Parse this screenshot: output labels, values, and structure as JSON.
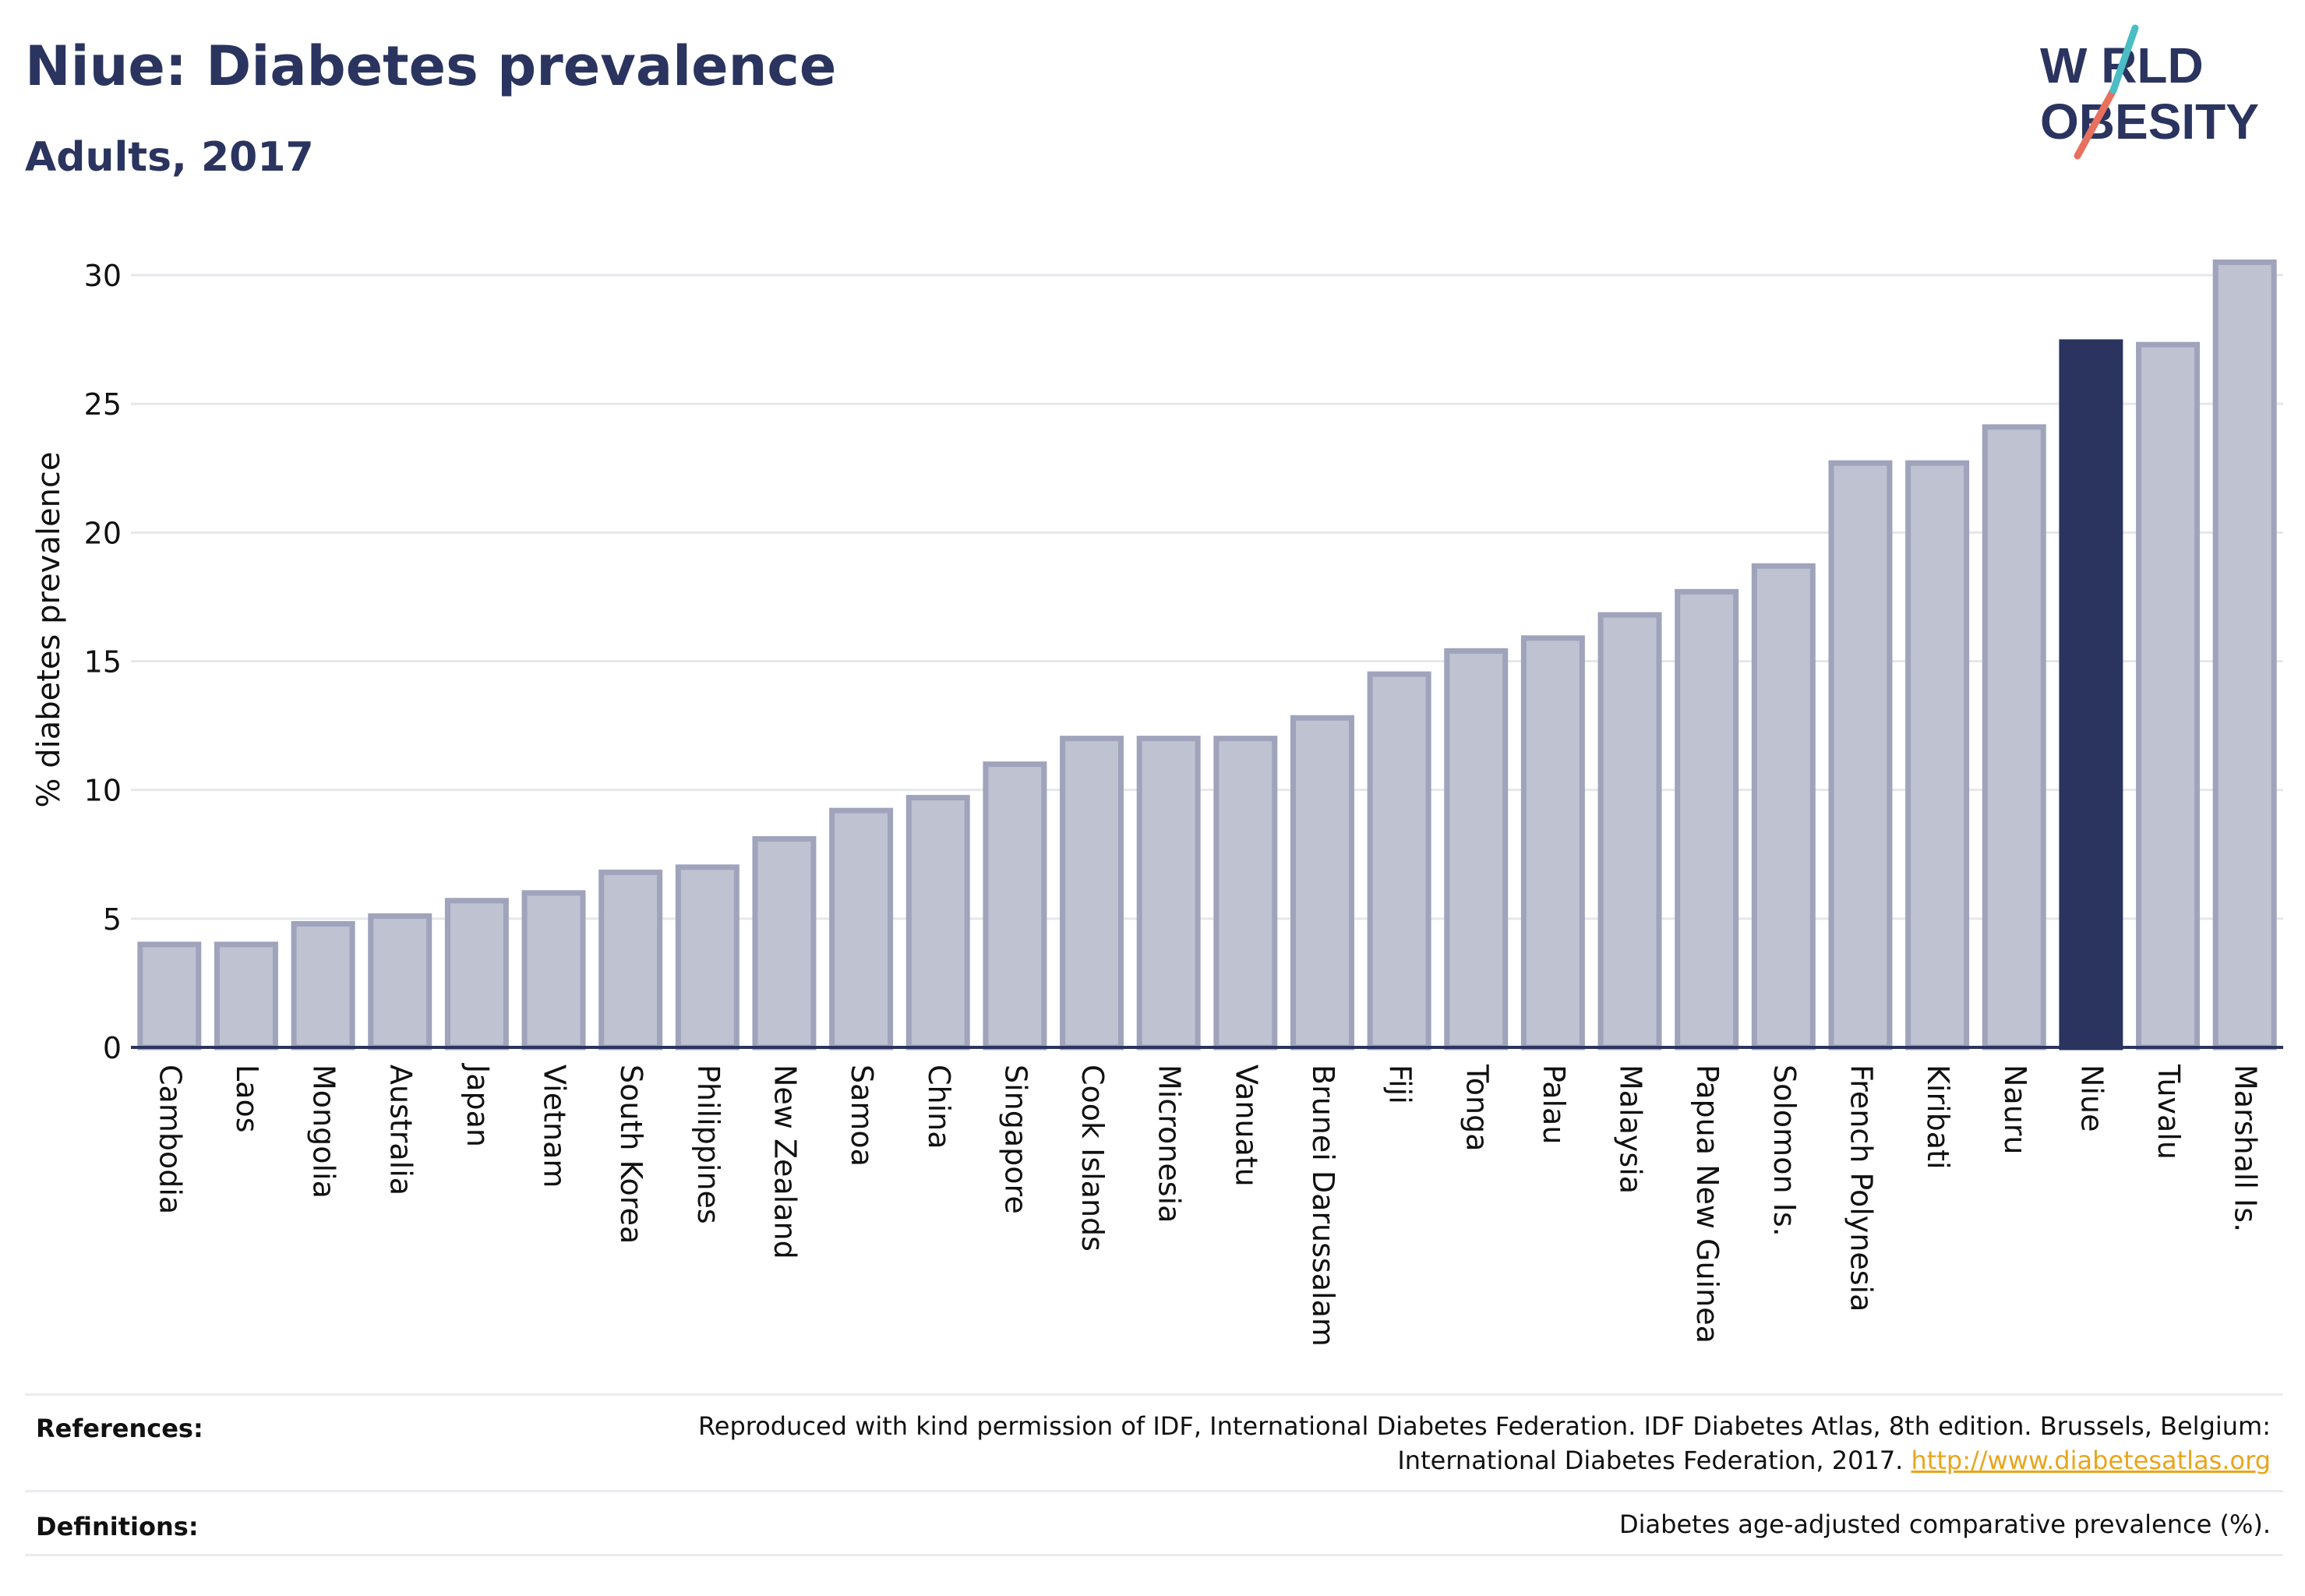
{
  "header": {
    "title": "Niue: Diabetes prevalence",
    "subtitle": "Adults, 2017",
    "logo_line1": "W RLD",
    "logo_line2": "OBESITY"
  },
  "chart_data": {
    "type": "bar",
    "ylabel": "% diabetes prevalence",
    "ylim": [
      0,
      31
    ],
    "yticks": [
      0,
      5,
      10,
      15,
      20,
      25,
      30
    ],
    "grid": true,
    "categories": [
      "Cambodia",
      "Laos",
      "Mongolia",
      "Australia",
      "Japan",
      "Vietnam",
      "South Korea",
      "Philippines",
      "New Zealand",
      "Samoa",
      "China",
      "Singapore",
      "Cook Islands",
      "Micronesia",
      "Vanuatu",
      "Brunei Darussalam",
      "Fiji",
      "Tonga",
      "Palau",
      "Malaysia",
      "Papua New Guinea",
      "Solomon Is.",
      "French Polynesia",
      "Kiribati",
      "Nauru",
      "Niue",
      "Tuvalu",
      "Marshall Is."
    ],
    "values": [
      4.0,
      4.0,
      4.8,
      5.1,
      5.7,
      6.0,
      6.8,
      7.0,
      8.1,
      9.2,
      9.7,
      11.0,
      12.0,
      12.0,
      12.0,
      12.8,
      14.5,
      15.4,
      15.9,
      16.8,
      17.7,
      18.7,
      22.7,
      22.7,
      24.1,
      27.4,
      27.3,
      30.5
    ],
    "highlight": "Niue",
    "colors": {
      "bar": "#bfc2d0",
      "bar_border": "#9fa3bb",
      "highlight": "#2a345f",
      "grid": "#e5e7ec",
      "axis": "#2a345f"
    }
  },
  "footer": {
    "references_label": "References:",
    "references_line1": "Reproduced with kind permission of IDF, International Diabetes Federation. IDF Diabetes Atlas, 8th edition. Brussels, Belgium:",
    "references_line2": "International Diabetes Federation, 2017.",
    "references_link": "http://www.diabetesatlas.org",
    "definitions_label": "Definitions:",
    "definitions_text": "Diabetes age-adjusted comparative prevalence (%)."
  }
}
